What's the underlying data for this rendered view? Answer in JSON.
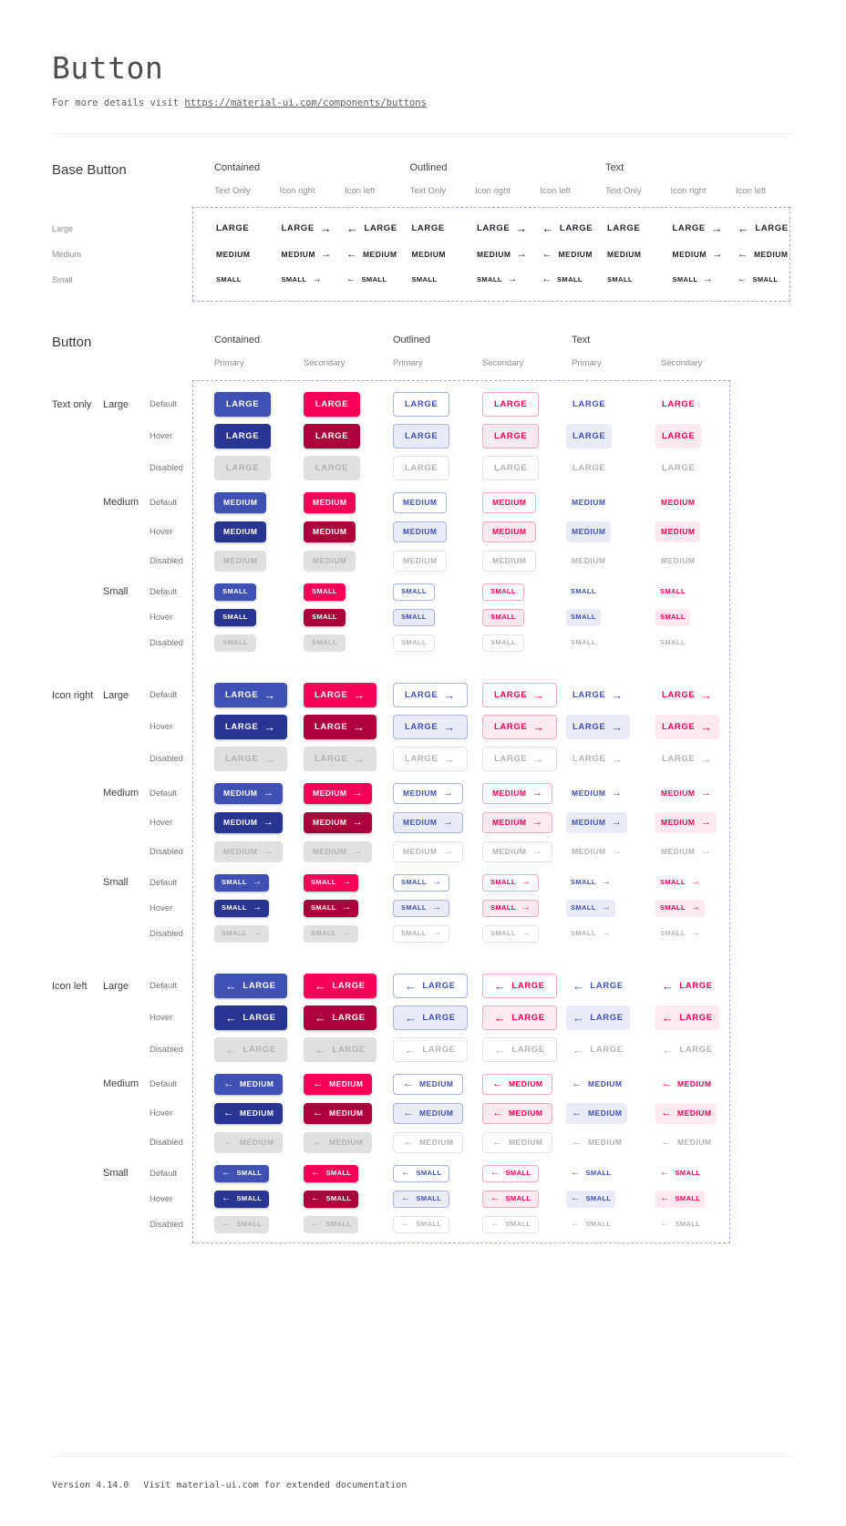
{
  "page": {
    "title": "Button",
    "subtitle_prefix": "For more details visit",
    "subtitle_link": "https://material-ui.com/components/buttons",
    "footer_version": "Version 4.14.0",
    "footer_note": "Visit material-ui.com for extended documentation"
  },
  "icons": {
    "right": "→",
    "left": "←"
  },
  "base_section": {
    "title": "Base Button",
    "groups": [
      {
        "label": "Contained",
        "subcolumns": [
          "Text Only",
          "Icon right",
          "Icon left"
        ]
      },
      {
        "label": "Outlined",
        "subcolumns": [
          "Text Only",
          "Icon right",
          "Icon left"
        ]
      },
      {
        "label": "Text",
        "subcolumns": [
          "Text Only",
          "Icon right",
          "Icon left"
        ]
      }
    ],
    "rows": [
      {
        "label": "Large",
        "button_text": "LARGE"
      },
      {
        "label": "Medium",
        "button_text": "MEDIUM"
      },
      {
        "label": "Small",
        "button_text": "SMALL"
      }
    ]
  },
  "button_section": {
    "title": "Button",
    "groups": [
      {
        "label": "Contained",
        "variant": "contained",
        "subcolumns": [
          "Primary",
          "Secondary"
        ]
      },
      {
        "label": "Outlined",
        "variant": "outlined",
        "subcolumns": [
          "Primary",
          "Secondary"
        ]
      },
      {
        "label": "Text",
        "variant": "text",
        "subcolumns": [
          "Primary",
          "Secondary"
        ]
      }
    ],
    "row_groups": [
      {
        "label": "Text only",
        "icon": "none"
      },
      {
        "label": "Icon right",
        "icon": "right"
      },
      {
        "label": "Icon left",
        "icon": "left"
      }
    ],
    "sizes": [
      {
        "label": "Large",
        "button_text": "LARGE"
      },
      {
        "label": "Medium",
        "button_text": "MEDIUM"
      },
      {
        "label": "Small",
        "button_text": "SMALL"
      }
    ],
    "states": [
      "Default",
      "Hover",
      "Disabled"
    ]
  },
  "colors": {
    "primary": "#3f51b5",
    "primary_dark": "#283593",
    "primary_border": "#aab4de",
    "primary_tint": "#e9ebf7",
    "secondary": "#f50057",
    "secondary_dark": "#ab003c",
    "secondary_border": "#f8a9c2",
    "secondary_tint": "#fde9f0",
    "disabled_bg": "#e0e0e0",
    "disabled_text": "#b3b3b3",
    "disabled_border": "#e4e4e4",
    "base_text": "#23232b"
  }
}
